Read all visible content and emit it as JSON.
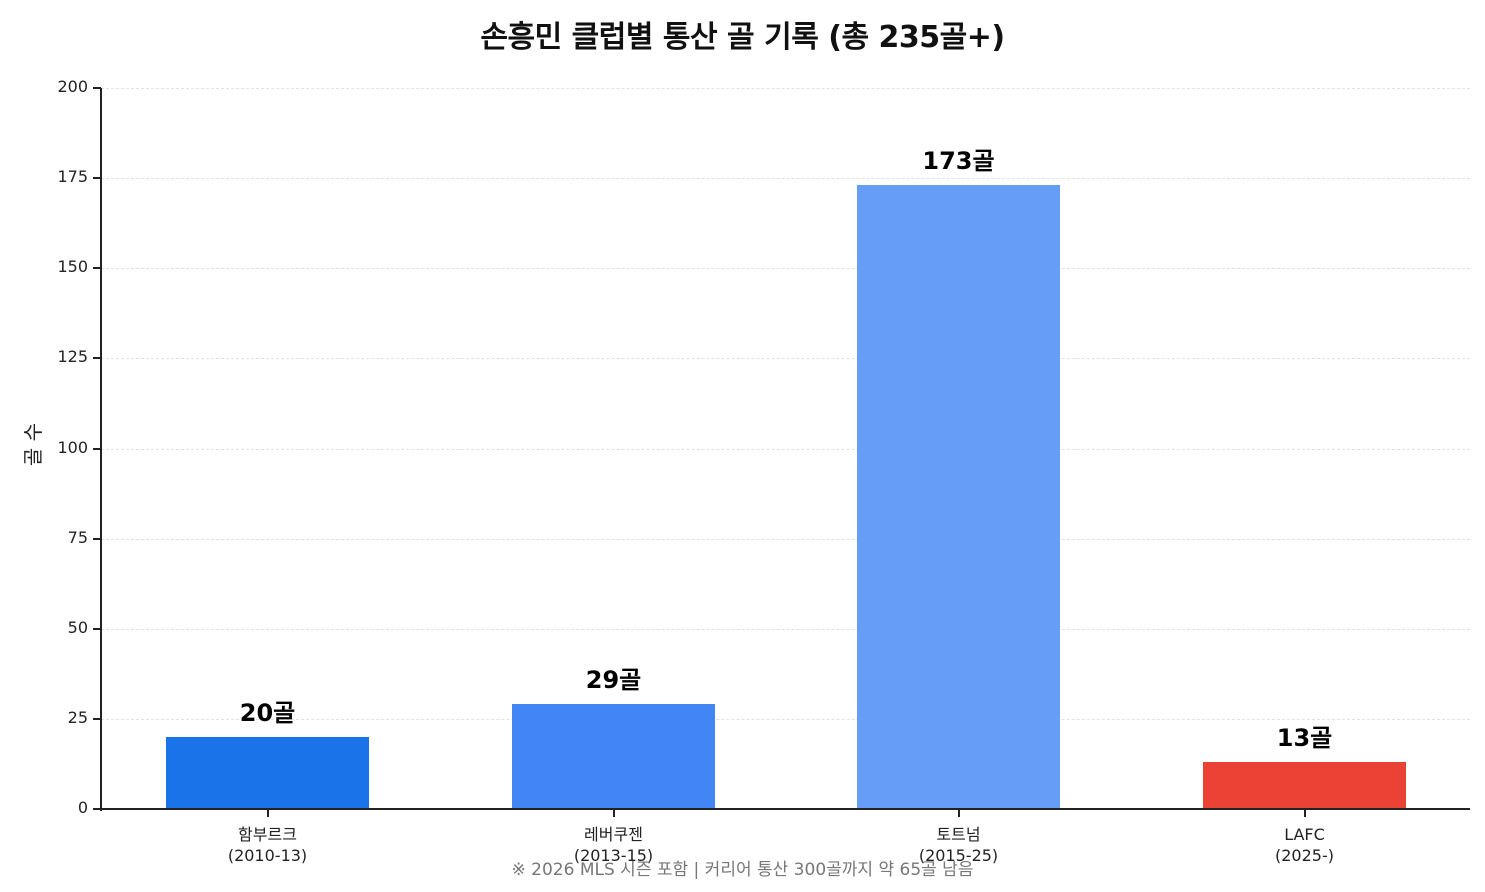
{
  "chart_data": {
    "type": "bar",
    "title": "손흥민 클럽별 통산 골 기록 (총 235골+)",
    "xlabel": "",
    "ylabel": "골 수",
    "ylim": [
      0,
      200
    ],
    "yticks": [
      "0",
      "25",
      "50",
      "75",
      "100",
      "125",
      "150",
      "175",
      "200"
    ],
    "grid": "horizontal dashed",
    "categories": [
      {
        "name": "함부르크",
        "period": "(2010-13)"
      },
      {
        "name": "레버쿠젠",
        "period": "(2013-15)"
      },
      {
        "name": "토트넘",
        "period": "(2015-25)"
      },
      {
        "name": "LAFC",
        "period": "(2025-)"
      }
    ],
    "values": [
      20,
      29,
      173,
      13
    ],
    "value_labels": [
      "20골",
      "29골",
      "173골",
      "13골"
    ],
    "colors": [
      "#1a73e8",
      "#4285f4",
      "#669df6",
      "#ea4335"
    ],
    "footnote": "※ 2026 MLS 시즌 포함 | 커리어 통산 300골까지 약 65골 남음"
  }
}
